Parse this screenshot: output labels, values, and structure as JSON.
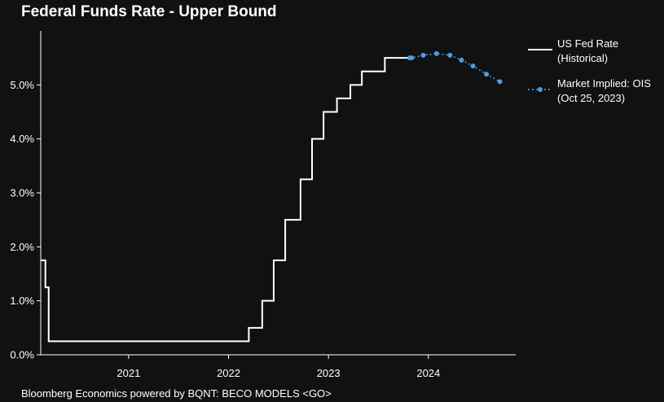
{
  "chart_data": {
    "type": "line",
    "title": "Federal Funds Rate - Upper Bound",
    "xlabel": "",
    "ylabel": "",
    "xlim": [
      "2020-02-15",
      "2024-11-15"
    ],
    "ylim": [
      0,
      6
    ],
    "x_ticks": [
      "2021",
      "2022",
      "2023",
      "2024"
    ],
    "x_tick_dates": [
      "2021-01-01",
      "2022-01-01",
      "2023-01-01",
      "2024-01-01"
    ],
    "y_ticks": [
      0,
      1,
      2,
      3,
      4,
      5
    ],
    "y_tick_labels": [
      "0.0%",
      "1.0%",
      "2.0%",
      "3.0%",
      "4.0%",
      "5.0%"
    ],
    "grid": false,
    "legend_position": "right",
    "series": [
      {
        "name": "US Fed Rate (Historical)",
        "legend_lines": [
          "US Fed Rate",
          "(Historical)"
        ],
        "style": "step",
        "color": "#ffffff",
        "points": [
          [
            "2020-02-15",
            1.75
          ],
          [
            "2020-03-03",
            1.25
          ],
          [
            "2020-03-15",
            0.25
          ],
          [
            "2022-03-16",
            0.5
          ],
          [
            "2022-05-04",
            1.0
          ],
          [
            "2022-06-15",
            1.75
          ],
          [
            "2022-07-27",
            2.5
          ],
          [
            "2022-09-21",
            3.25
          ],
          [
            "2022-11-02",
            4.0
          ],
          [
            "2022-12-14",
            4.5
          ],
          [
            "2023-02-01",
            4.75
          ],
          [
            "2023-03-22",
            5.0
          ],
          [
            "2023-05-03",
            5.25
          ],
          [
            "2023-07-26",
            5.5
          ],
          [
            "2023-10-25",
            5.5
          ]
        ]
      },
      {
        "name": "Market Implied: OIS (Oct 25, 2023)",
        "legend_lines": [
          "Market Implied: OIS",
          "(Oct 25, 2023)"
        ],
        "style": "dotted-markers",
        "color": "#4a9ee6",
        "points": [
          [
            "2023-10-25",
            5.5
          ],
          [
            "2023-11-01",
            5.5
          ],
          [
            "2023-12-13",
            5.55
          ],
          [
            "2024-01-31",
            5.58
          ],
          [
            "2024-03-20",
            5.55
          ],
          [
            "2024-05-01",
            5.46
          ],
          [
            "2024-06-12",
            5.35
          ],
          [
            "2024-07-31",
            5.2
          ],
          [
            "2024-09-18",
            5.06
          ]
        ]
      }
    ]
  },
  "footer": "Bloomberg Economics powered by BQNT: BECO MODELS <GO>"
}
